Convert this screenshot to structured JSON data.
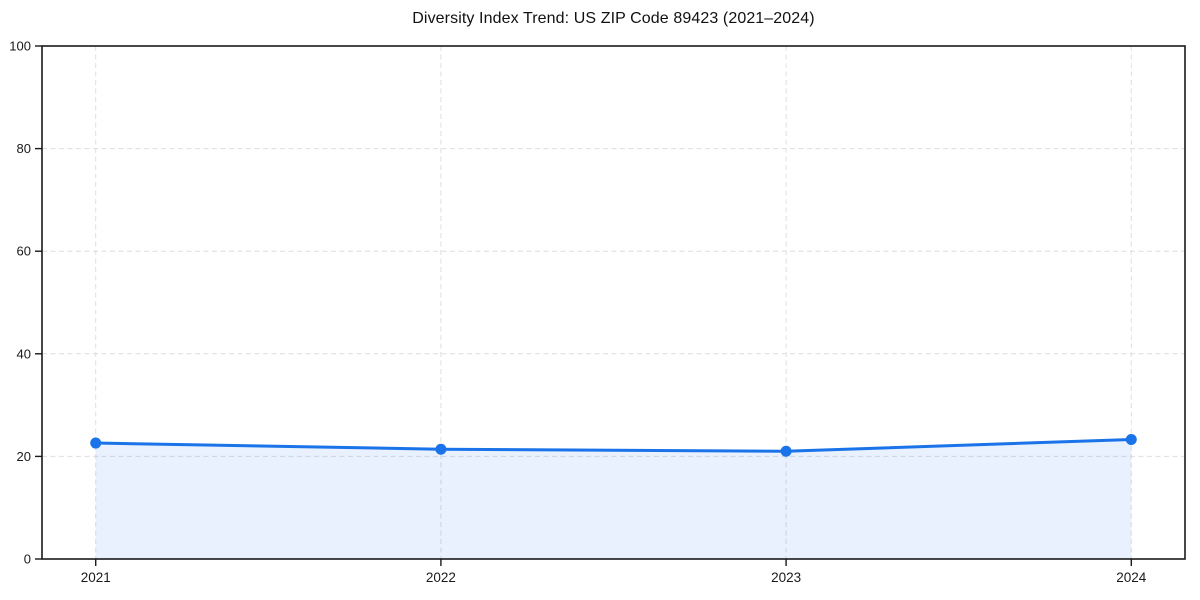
{
  "chart_data": {
    "type": "line",
    "title": "Diversity Index Trend: US ZIP Code 89423 (2021–2024)",
    "categories": [
      "2021",
      "2022",
      "2023",
      "2024"
    ],
    "series": [
      {
        "name": "Diversity Index",
        "values": [
          22.6,
          21.4,
          21.0,
          23.3
        ]
      }
    ],
    "xlabel": "",
    "ylabel": "",
    "ylim": [
      0,
      100
    ],
    "yticks": [
      0,
      20,
      40,
      60,
      80,
      100
    ],
    "ytick_labels": [
      "0",
      "20",
      "40",
      "60",
      "80",
      "100"
    ],
    "grid": true,
    "grid_style": "dashed",
    "legend_position": "none",
    "marker": "circle",
    "area_fill": true,
    "colors": {
      "line": "#1a73e8",
      "marker": "#1a73e8",
      "area_fill": "rgba(26,115,232,0.10)",
      "gridline": "#dedede",
      "spine": "#1a1a1a",
      "text": "#1a1a1a",
      "background": "#ffffff"
    }
  }
}
